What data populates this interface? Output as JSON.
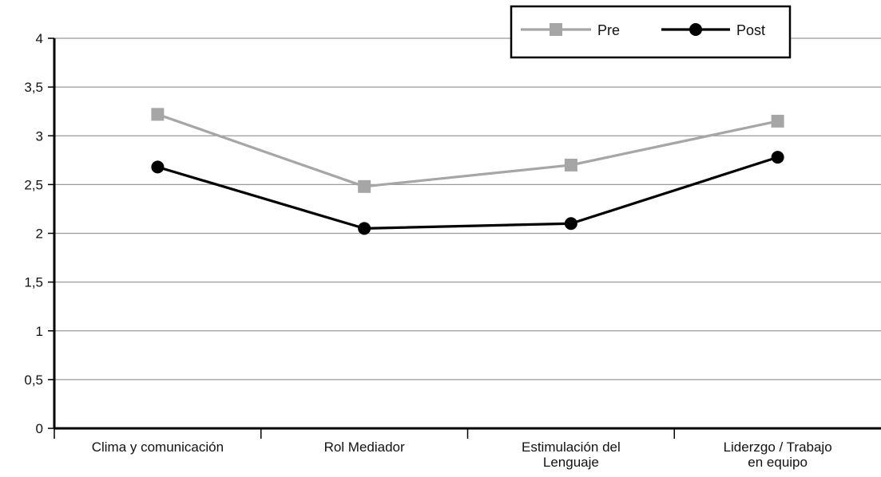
{
  "chart_data": {
    "type": "line",
    "categories": [
      [
        "Clima y comunicación"
      ],
      [
        "Rol Mediador"
      ],
      [
        "Estimulación del",
        "Lenguaje"
      ],
      [
        "Liderzgo / Trabajo",
        "en equipo"
      ]
    ],
    "series": [
      {
        "name": "Pre",
        "values": [
          3.22,
          2.48,
          2.7,
          3.15
        ],
        "color": "#a6a6a6",
        "marker": "square"
      },
      {
        "name": "Post",
        "values": [
          2.68,
          2.05,
          2.1,
          2.78
        ],
        "color": "#000000",
        "marker": "circle"
      }
    ],
    "y_ticks": [
      "0",
      "0,5",
      "1",
      "1,5",
      "2",
      "2,5",
      "3",
      "3,5",
      "4"
    ],
    "ylim": [
      0,
      4
    ],
    "y_step": 0.5,
    "grid": true,
    "legend_position": "top-right",
    "title": "",
    "xlabel": "",
    "ylabel": ""
  }
}
